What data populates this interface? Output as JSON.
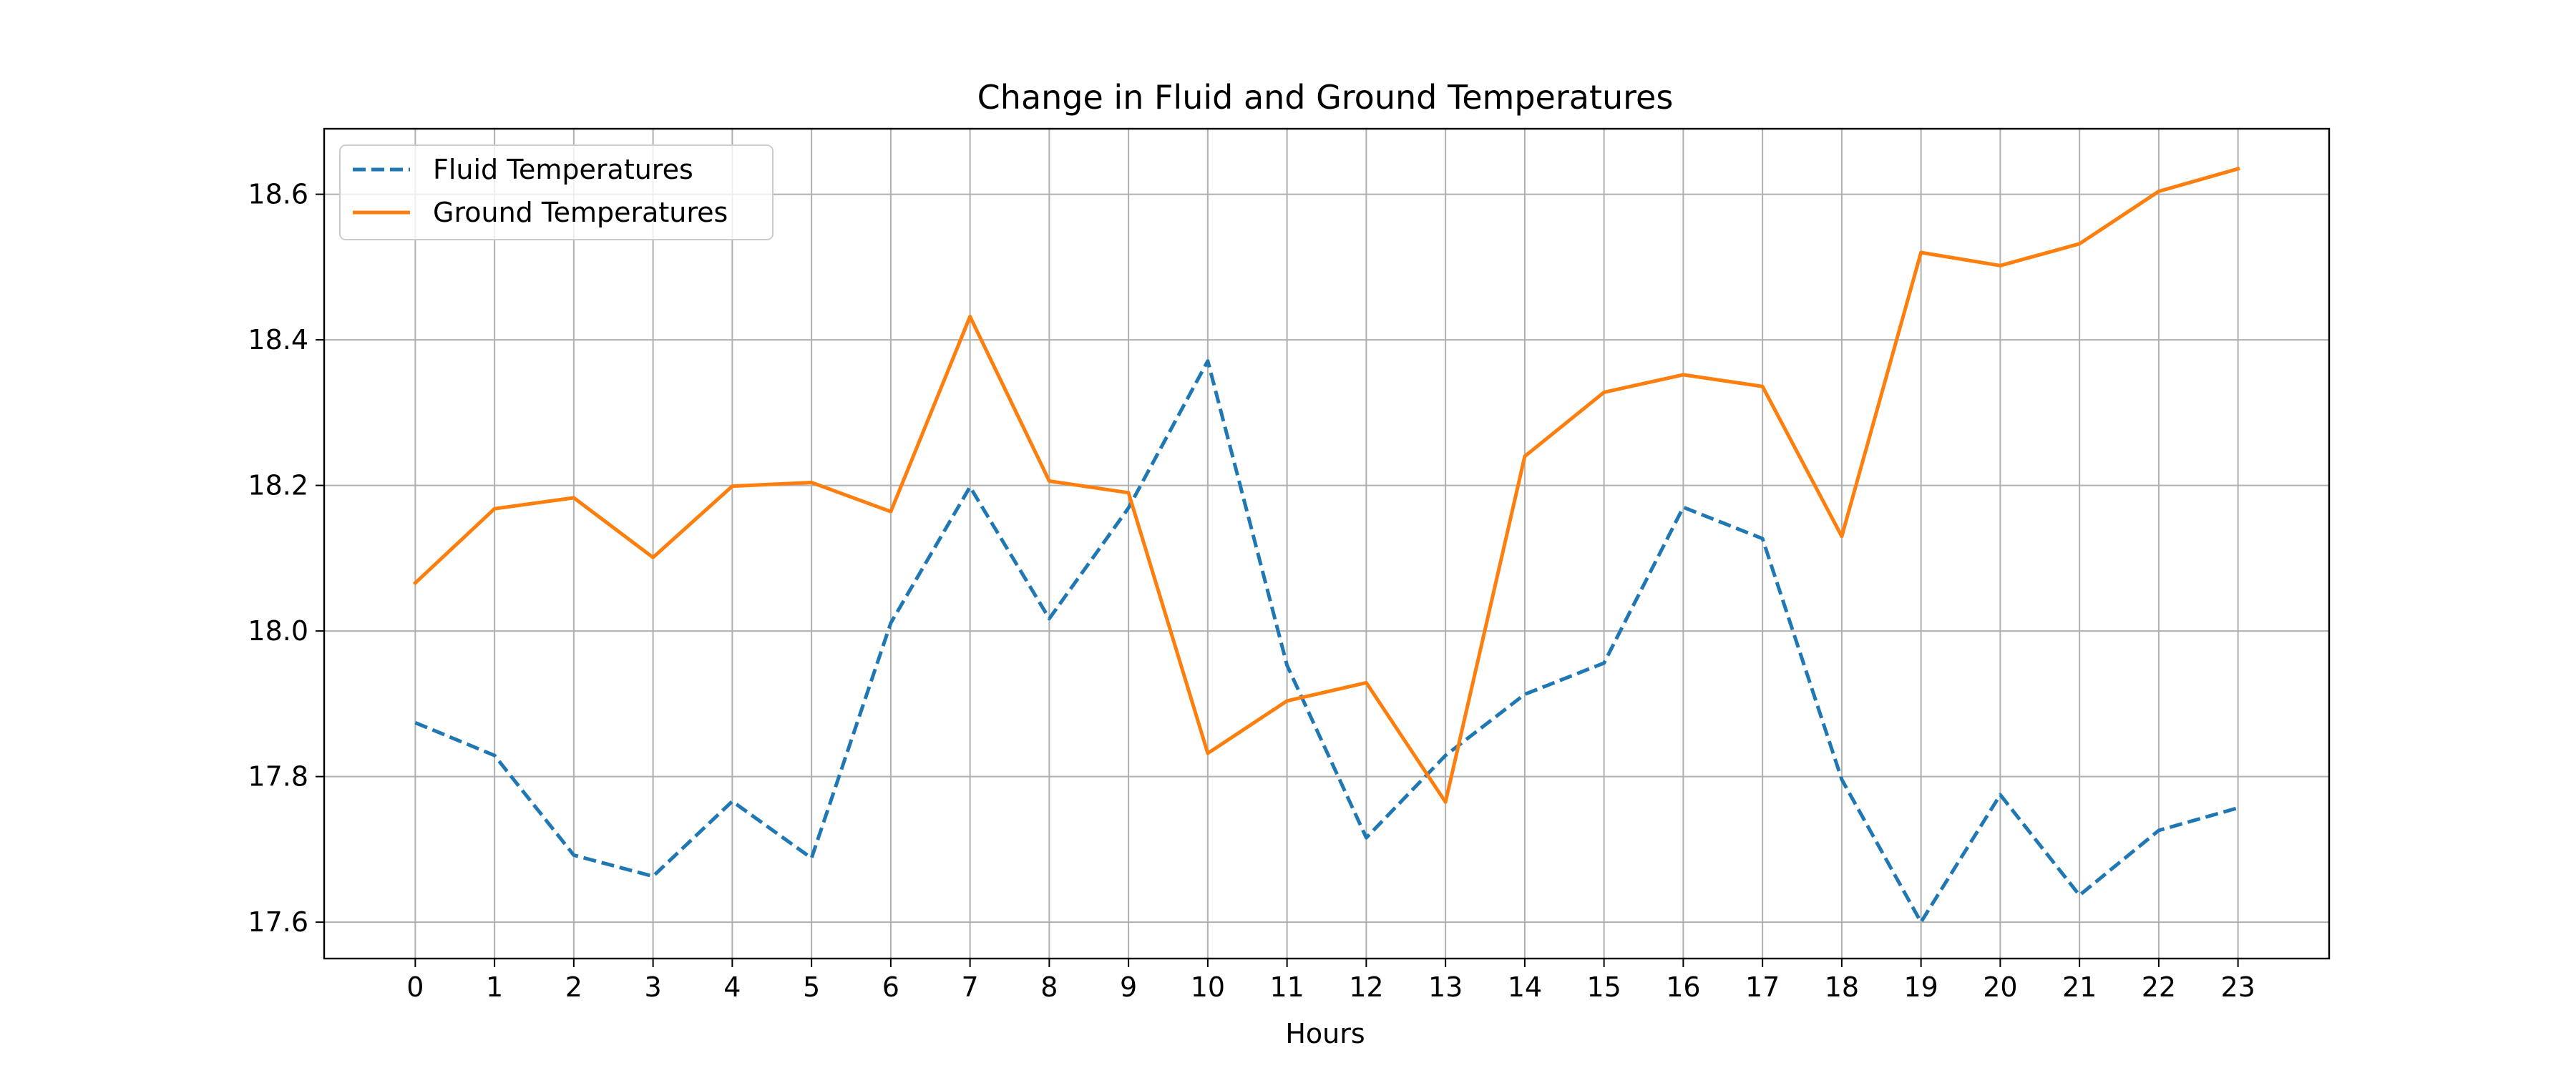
{
  "chart_data": {
    "type": "line",
    "title": "Change in Fluid and Ground Temperatures",
    "xlabel": "Hours",
    "ylabel": "",
    "x": [
      0,
      1,
      2,
      3,
      4,
      5,
      6,
      7,
      8,
      9,
      10,
      11,
      12,
      13,
      14,
      15,
      16,
      17,
      18,
      19,
      20,
      21,
      22,
      23
    ],
    "xlim": [
      -1.15,
      24.15
    ],
    "ylim": [
      17.55,
      18.69
    ],
    "yticks": [
      17.6,
      17.8,
      18.0,
      18.2,
      18.4,
      18.6
    ],
    "ytick_labels": [
      "17.6",
      "17.8",
      "18.0",
      "18.2",
      "18.4",
      "18.6"
    ],
    "grid": true,
    "legend_position": "upper-left",
    "series": [
      {
        "name": "Fluid Temperatures",
        "style": "dashed",
        "color": "#1f77b4",
        "values": [
          17.874,
          17.829,
          17.692,
          17.663,
          17.766,
          17.688,
          18.011,
          18.198,
          18.017,
          18.169,
          18.371,
          17.953,
          17.716,
          17.829,
          17.913,
          17.956,
          18.17,
          18.127,
          17.796,
          17.6,
          17.775,
          17.637,
          17.726,
          17.757
        ]
      },
      {
        "name": "Ground Temperatures",
        "style": "solid",
        "color": "#ff7f0e",
        "values": [
          18.066,
          18.168,
          18.183,
          18.101,
          18.199,
          18.204,
          18.164,
          18.432,
          18.206,
          18.19,
          17.832,
          17.904,
          17.929,
          17.765,
          18.24,
          18.328,
          18.352,
          18.336,
          18.13,
          18.52,
          18.502,
          18.532,
          18.604,
          18.635
        ]
      }
    ]
  }
}
